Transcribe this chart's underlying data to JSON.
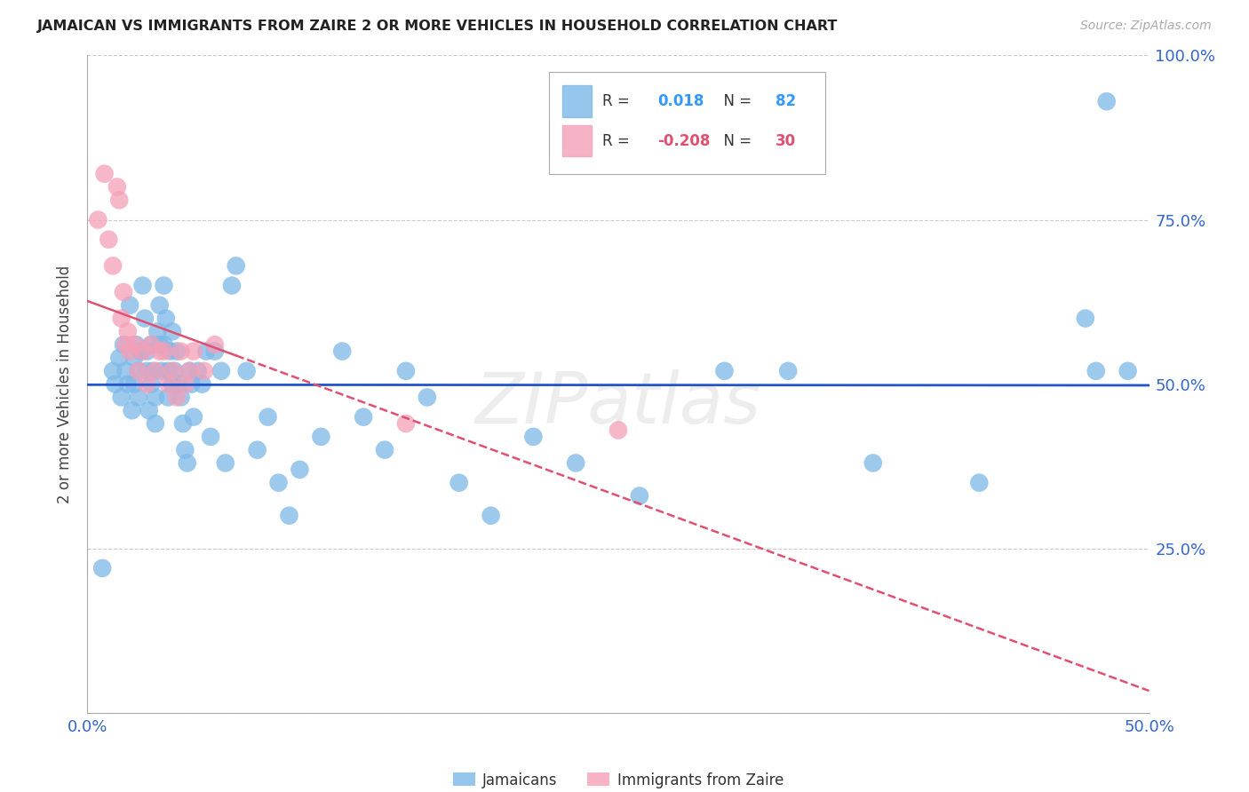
{
  "title": "JAMAICAN VS IMMIGRANTS FROM ZAIRE 2 OR MORE VEHICLES IN HOUSEHOLD CORRELATION CHART",
  "source": "Source: ZipAtlas.com",
  "ylabel": "2 or more Vehicles in Household",
  "x_min": 0.0,
  "x_max": 0.5,
  "y_min": 0.0,
  "y_max": 1.0,
  "x_ticks": [
    0.0,
    0.1,
    0.2,
    0.3,
    0.4,
    0.5
  ],
  "x_tick_labels": [
    "0.0%",
    "",
    "",
    "",
    "",
    "50.0%"
  ],
  "y_ticks": [
    0.0,
    0.25,
    0.5,
    0.75,
    1.0
  ],
  "y_tick_labels": [
    "",
    "25.0%",
    "50.0%",
    "75.0%",
    "100.0%"
  ],
  "jamaicans_color": "#7db8e8",
  "zaire_color": "#f4a0b8",
  "jamaicans_R": 0.018,
  "jamaicans_N": 82,
  "zaire_R": -0.208,
  "zaire_N": 30,
  "trend_jamaicans_color": "#2255cc",
  "trend_zaire_color": "#e05070",
  "watermark": "ZIPatlas",
  "jamaicans_x": [
    0.007,
    0.012,
    0.013,
    0.015,
    0.016,
    0.017,
    0.018,
    0.019,
    0.02,
    0.021,
    0.022,
    0.022,
    0.023,
    0.024,
    0.024,
    0.025,
    0.026,
    0.027,
    0.028,
    0.028,
    0.029,
    0.03,
    0.03,
    0.031,
    0.032,
    0.032,
    0.033,
    0.034,
    0.034,
    0.035,
    0.036,
    0.036,
    0.037,
    0.038,
    0.038,
    0.039,
    0.04,
    0.04,
    0.041,
    0.042,
    0.043,
    0.044,
    0.045,
    0.046,
    0.047,
    0.048,
    0.049,
    0.05,
    0.052,
    0.054,
    0.056,
    0.058,
    0.06,
    0.063,
    0.065,
    0.068,
    0.07,
    0.075,
    0.08,
    0.085,
    0.09,
    0.095,
    0.1,
    0.11,
    0.12,
    0.13,
    0.14,
    0.15,
    0.16,
    0.175,
    0.19,
    0.21,
    0.23,
    0.26,
    0.3,
    0.33,
    0.37,
    0.42,
    0.47,
    0.475,
    0.48,
    0.49
  ],
  "jamaicans_y": [
    0.22,
    0.52,
    0.5,
    0.54,
    0.48,
    0.56,
    0.52,
    0.5,
    0.62,
    0.46,
    0.54,
    0.5,
    0.56,
    0.52,
    0.48,
    0.55,
    0.65,
    0.6,
    0.55,
    0.52,
    0.46,
    0.56,
    0.5,
    0.52,
    0.48,
    0.44,
    0.58,
    0.62,
    0.56,
    0.52,
    0.65,
    0.56,
    0.6,
    0.52,
    0.48,
    0.55,
    0.5,
    0.58,
    0.52,
    0.55,
    0.5,
    0.48,
    0.44,
    0.4,
    0.38,
    0.52,
    0.5,
    0.45,
    0.52,
    0.5,
    0.55,
    0.42,
    0.55,
    0.52,
    0.38,
    0.65,
    0.68,
    0.52,
    0.4,
    0.45,
    0.35,
    0.3,
    0.37,
    0.42,
    0.55,
    0.45,
    0.4,
    0.52,
    0.48,
    0.35,
    0.3,
    0.42,
    0.38,
    0.33,
    0.52,
    0.52,
    0.38,
    0.35,
    0.6,
    0.52,
    0.93,
    0.52
  ],
  "zaire_x": [
    0.005,
    0.008,
    0.01,
    0.012,
    0.014,
    0.015,
    0.016,
    0.017,
    0.018,
    0.019,
    0.02,
    0.022,
    0.024,
    0.026,
    0.028,
    0.03,
    0.032,
    0.034,
    0.036,
    0.038,
    0.04,
    0.042,
    0.044,
    0.046,
    0.048,
    0.05,
    0.055,
    0.06,
    0.15,
    0.25
  ],
  "zaire_y": [
    0.75,
    0.82,
    0.72,
    0.68,
    0.8,
    0.78,
    0.6,
    0.64,
    0.56,
    0.58,
    0.55,
    0.56,
    0.52,
    0.55,
    0.5,
    0.56,
    0.52,
    0.55,
    0.55,
    0.5,
    0.52,
    0.48,
    0.55,
    0.5,
    0.52,
    0.55,
    0.52,
    0.56,
    0.44,
    0.43
  ]
}
